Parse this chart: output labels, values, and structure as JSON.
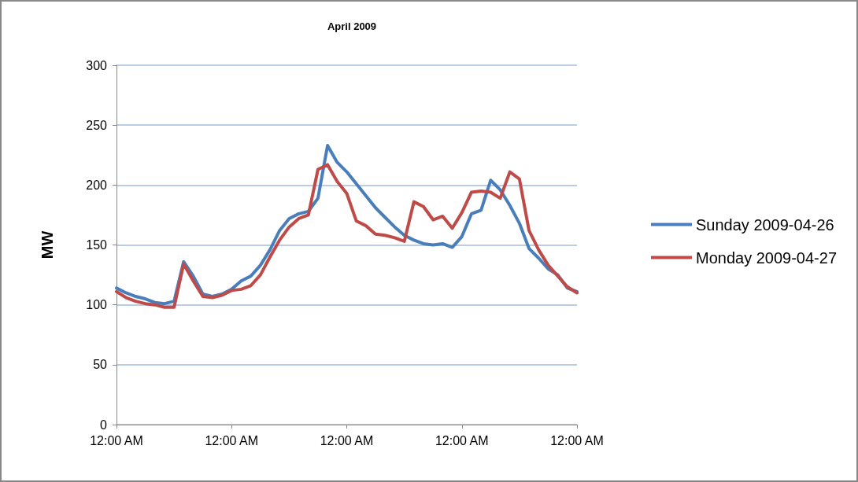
{
  "chart_data": {
    "type": "line",
    "title": "April 2009",
    "ylabel": "MW",
    "x": [
      0,
      0.5,
      1,
      1.5,
      2,
      2.5,
      3,
      3.5,
      4,
      4.5,
      5,
      5.5,
      6,
      6.5,
      7,
      7.5,
      8,
      8.5,
      9,
      9.5,
      10,
      10.5,
      11,
      11.5,
      12,
      12.5,
      13,
      13.5,
      14,
      14.5,
      15,
      15.5,
      16,
      16.5,
      17,
      17.5,
      18,
      18.5,
      19,
      19.5,
      20,
      20.5,
      21,
      21.5,
      22,
      22.5,
      23,
      23.5,
      24
    ],
    "xlim": [
      0,
      24
    ],
    "xticks": [
      {
        "value": 0,
        "label": "12:00 AM"
      },
      {
        "value": 6,
        "label": "12:00 AM"
      },
      {
        "value": 12,
        "label": "12:00 AM"
      },
      {
        "value": 18,
        "label": "12:00 AM"
      },
      {
        "value": 24,
        "label": "12:00 AM"
      }
    ],
    "ylim": [
      0,
      300
    ],
    "yticks": [
      0,
      50,
      100,
      150,
      200,
      250,
      300
    ],
    "series": [
      {
        "name": "Sunday 2009-04-26",
        "color": "#4a7ebb",
        "values": [
          114,
          110,
          107,
          105,
          102,
          101,
          103,
          136,
          124,
          109,
          107,
          109,
          113,
          120,
          124,
          133,
          146,
          162,
          172,
          176,
          178,
          189,
          233,
          219,
          211,
          201,
          191,
          181,
          173,
          165,
          158,
          154,
          151,
          150,
          151,
          148,
          157,
          176,
          179,
          204,
          196,
          183,
          168,
          147,
          139,
          130,
          125,
          114,
          111
        ]
      },
      {
        "name": "Monday 2009-04-27",
        "color": "#be4b48",
        "values": [
          111,
          106,
          103,
          101,
          100,
          98,
          98,
          134,
          120,
          107,
          106,
          108,
          112,
          113,
          116,
          125,
          140,
          154,
          165,
          172,
          175,
          213,
          217,
          203,
          193,
          170,
          166,
          159,
          158,
          156,
          153,
          186,
          182,
          171,
          174,
          164,
          177,
          194,
          195,
          194,
          189,
          211,
          205,
          162,
          146,
          133,
          124,
          115,
          110
        ]
      }
    ],
    "grid": "y",
    "legend": "right",
    "marker": "none",
    "line_style": "solid"
  }
}
